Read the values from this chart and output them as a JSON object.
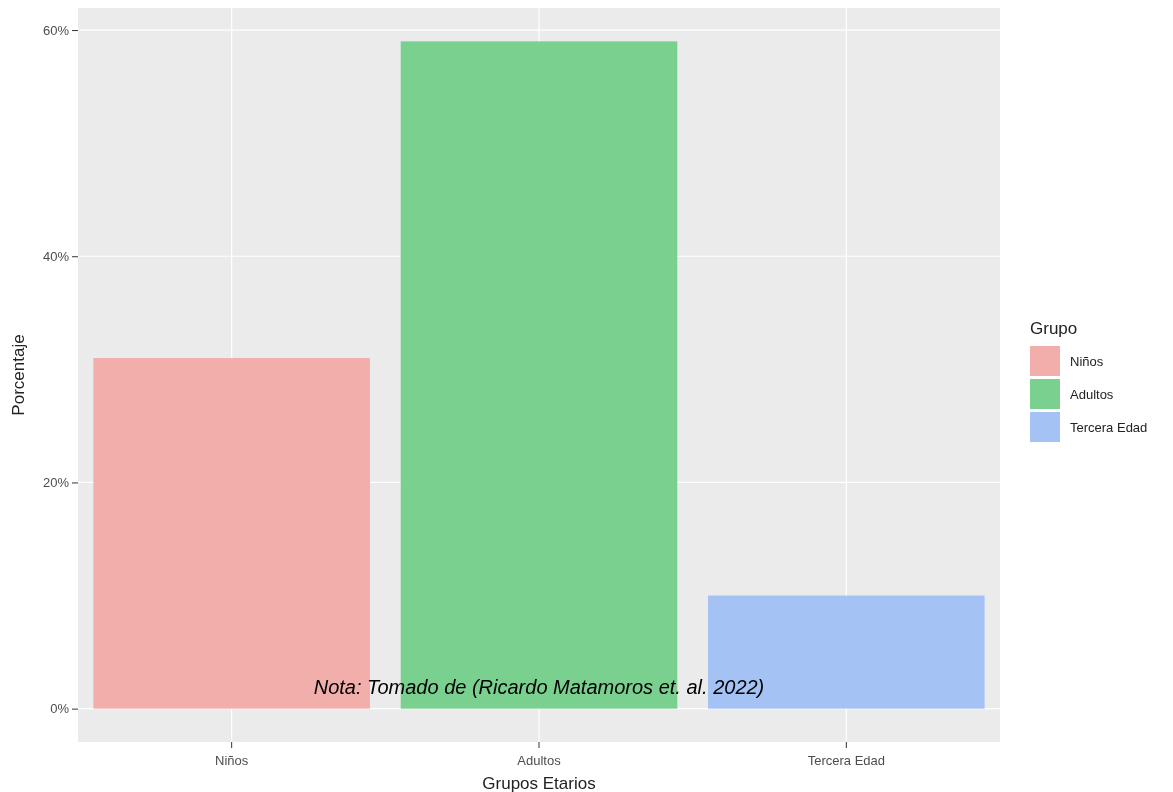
{
  "chart_data": {
    "type": "bar",
    "xlabel": "Grupos Etarios",
    "ylabel": "Porcentaje",
    "legend_title": "Grupo",
    "categories": [
      "Niños",
      "Adultos",
      "Tercera Edad"
    ],
    "series": [
      {
        "name": "Niños",
        "color": "#f1aeab",
        "values": [
          31,
          null,
          null
        ]
      },
      {
        "name": "Adultos",
        "color": "#79d08f",
        "values": [
          null,
          59,
          null
        ]
      },
      {
        "name": "Tercera Edad",
        "color": "#a5c2f4",
        "values": [
          null,
          null,
          10
        ]
      }
    ],
    "ylim": [
      -2.95,
      61.95
    ],
    "yticks": [
      {
        "value": 0,
        "label": "0%"
      },
      {
        "value": 20,
        "label": "20%"
      },
      {
        "value": 40,
        "label": "40%"
      },
      {
        "value": 60,
        "label": "60%"
      }
    ],
    "grid": true,
    "legend": "right",
    "annotations": [
      "Nota: Tomado de (Ricardo Matamoros et. al. 2022)"
    ]
  }
}
